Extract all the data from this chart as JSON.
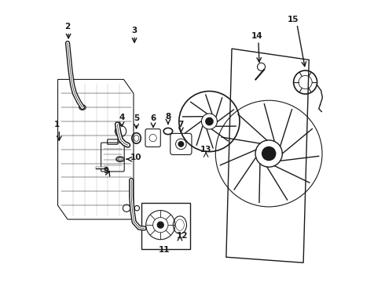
{
  "bg_color": "#ffffff",
  "line_color": "#1a1a1a",
  "label_color": "#000000"
}
